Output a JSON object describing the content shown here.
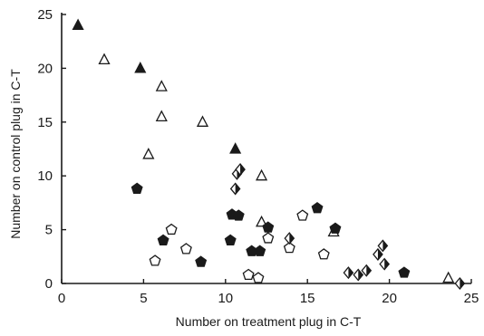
{
  "chart_data": {
    "type": "scatter",
    "xlabel": "Number on treatment plug in C-T",
    "ylabel": "Number on control plug in C-T",
    "xlim": [
      0,
      25
    ],
    "ylim": [
      0,
      25
    ],
    "xticks": [
      "0",
      "5",
      "10",
      "15",
      "20",
      "25"
    ],
    "yticks": [
      "0",
      "5",
      "10",
      "15",
      "20",
      "25"
    ],
    "grid": false,
    "legend": "none",
    "series": [
      {
        "marker": "triangle",
        "filled": true,
        "points": [
          [
            1,
            24
          ],
          [
            4.8,
            20
          ],
          [
            10.6,
            12.5
          ]
        ]
      },
      {
        "marker": "triangle",
        "filled": false,
        "points": [
          [
            2.6,
            20.8
          ],
          [
            6.1,
            18.3
          ],
          [
            6.1,
            15.5
          ],
          [
            5.3,
            12
          ],
          [
            8.6,
            15
          ],
          [
            12.2,
            10
          ],
          [
            12.2,
            5.7
          ],
          [
            16.6,
            4.8
          ],
          [
            23.6,
            0.5
          ]
        ]
      },
      {
        "marker": "pentagon",
        "filled": true,
        "points": [
          [
            4.6,
            8.8
          ],
          [
            6.2,
            4
          ],
          [
            8.5,
            2
          ],
          [
            10.3,
            4
          ],
          [
            10.4,
            6.4
          ],
          [
            10.8,
            6.3
          ],
          [
            11.6,
            3
          ],
          [
            12.1,
            3
          ],
          [
            12.6,
            5.2
          ],
          [
            15.6,
            7
          ],
          [
            16.7,
            5.1
          ],
          [
            20.9,
            1
          ]
        ]
      },
      {
        "marker": "pentagon",
        "filled": false,
        "points": [
          [
            5.7,
            2.1
          ],
          [
            6.7,
            5
          ],
          [
            7.6,
            3.2
          ],
          [
            11.4,
            0.8
          ],
          [
            12,
            0.5
          ],
          [
            12.6,
            4.2
          ],
          [
            13.9,
            3.3
          ],
          [
            14.7,
            6.3
          ],
          [
            16,
            2.7
          ]
        ]
      },
      {
        "marker": "diamond-half",
        "filled": false,
        "points": [
          [
            10.6,
            8.8
          ],
          [
            10.7,
            10.2
          ],
          [
            10.9,
            10.6
          ],
          [
            13.9,
            4.2
          ],
          [
            17.5,
            1
          ],
          [
            18.1,
            0.8
          ],
          [
            18.6,
            1.2
          ],
          [
            19.3,
            2.7
          ],
          [
            19.6,
            3.5
          ],
          [
            19.7,
            1.8
          ],
          [
            24.3,
            0
          ]
        ]
      }
    ]
  }
}
